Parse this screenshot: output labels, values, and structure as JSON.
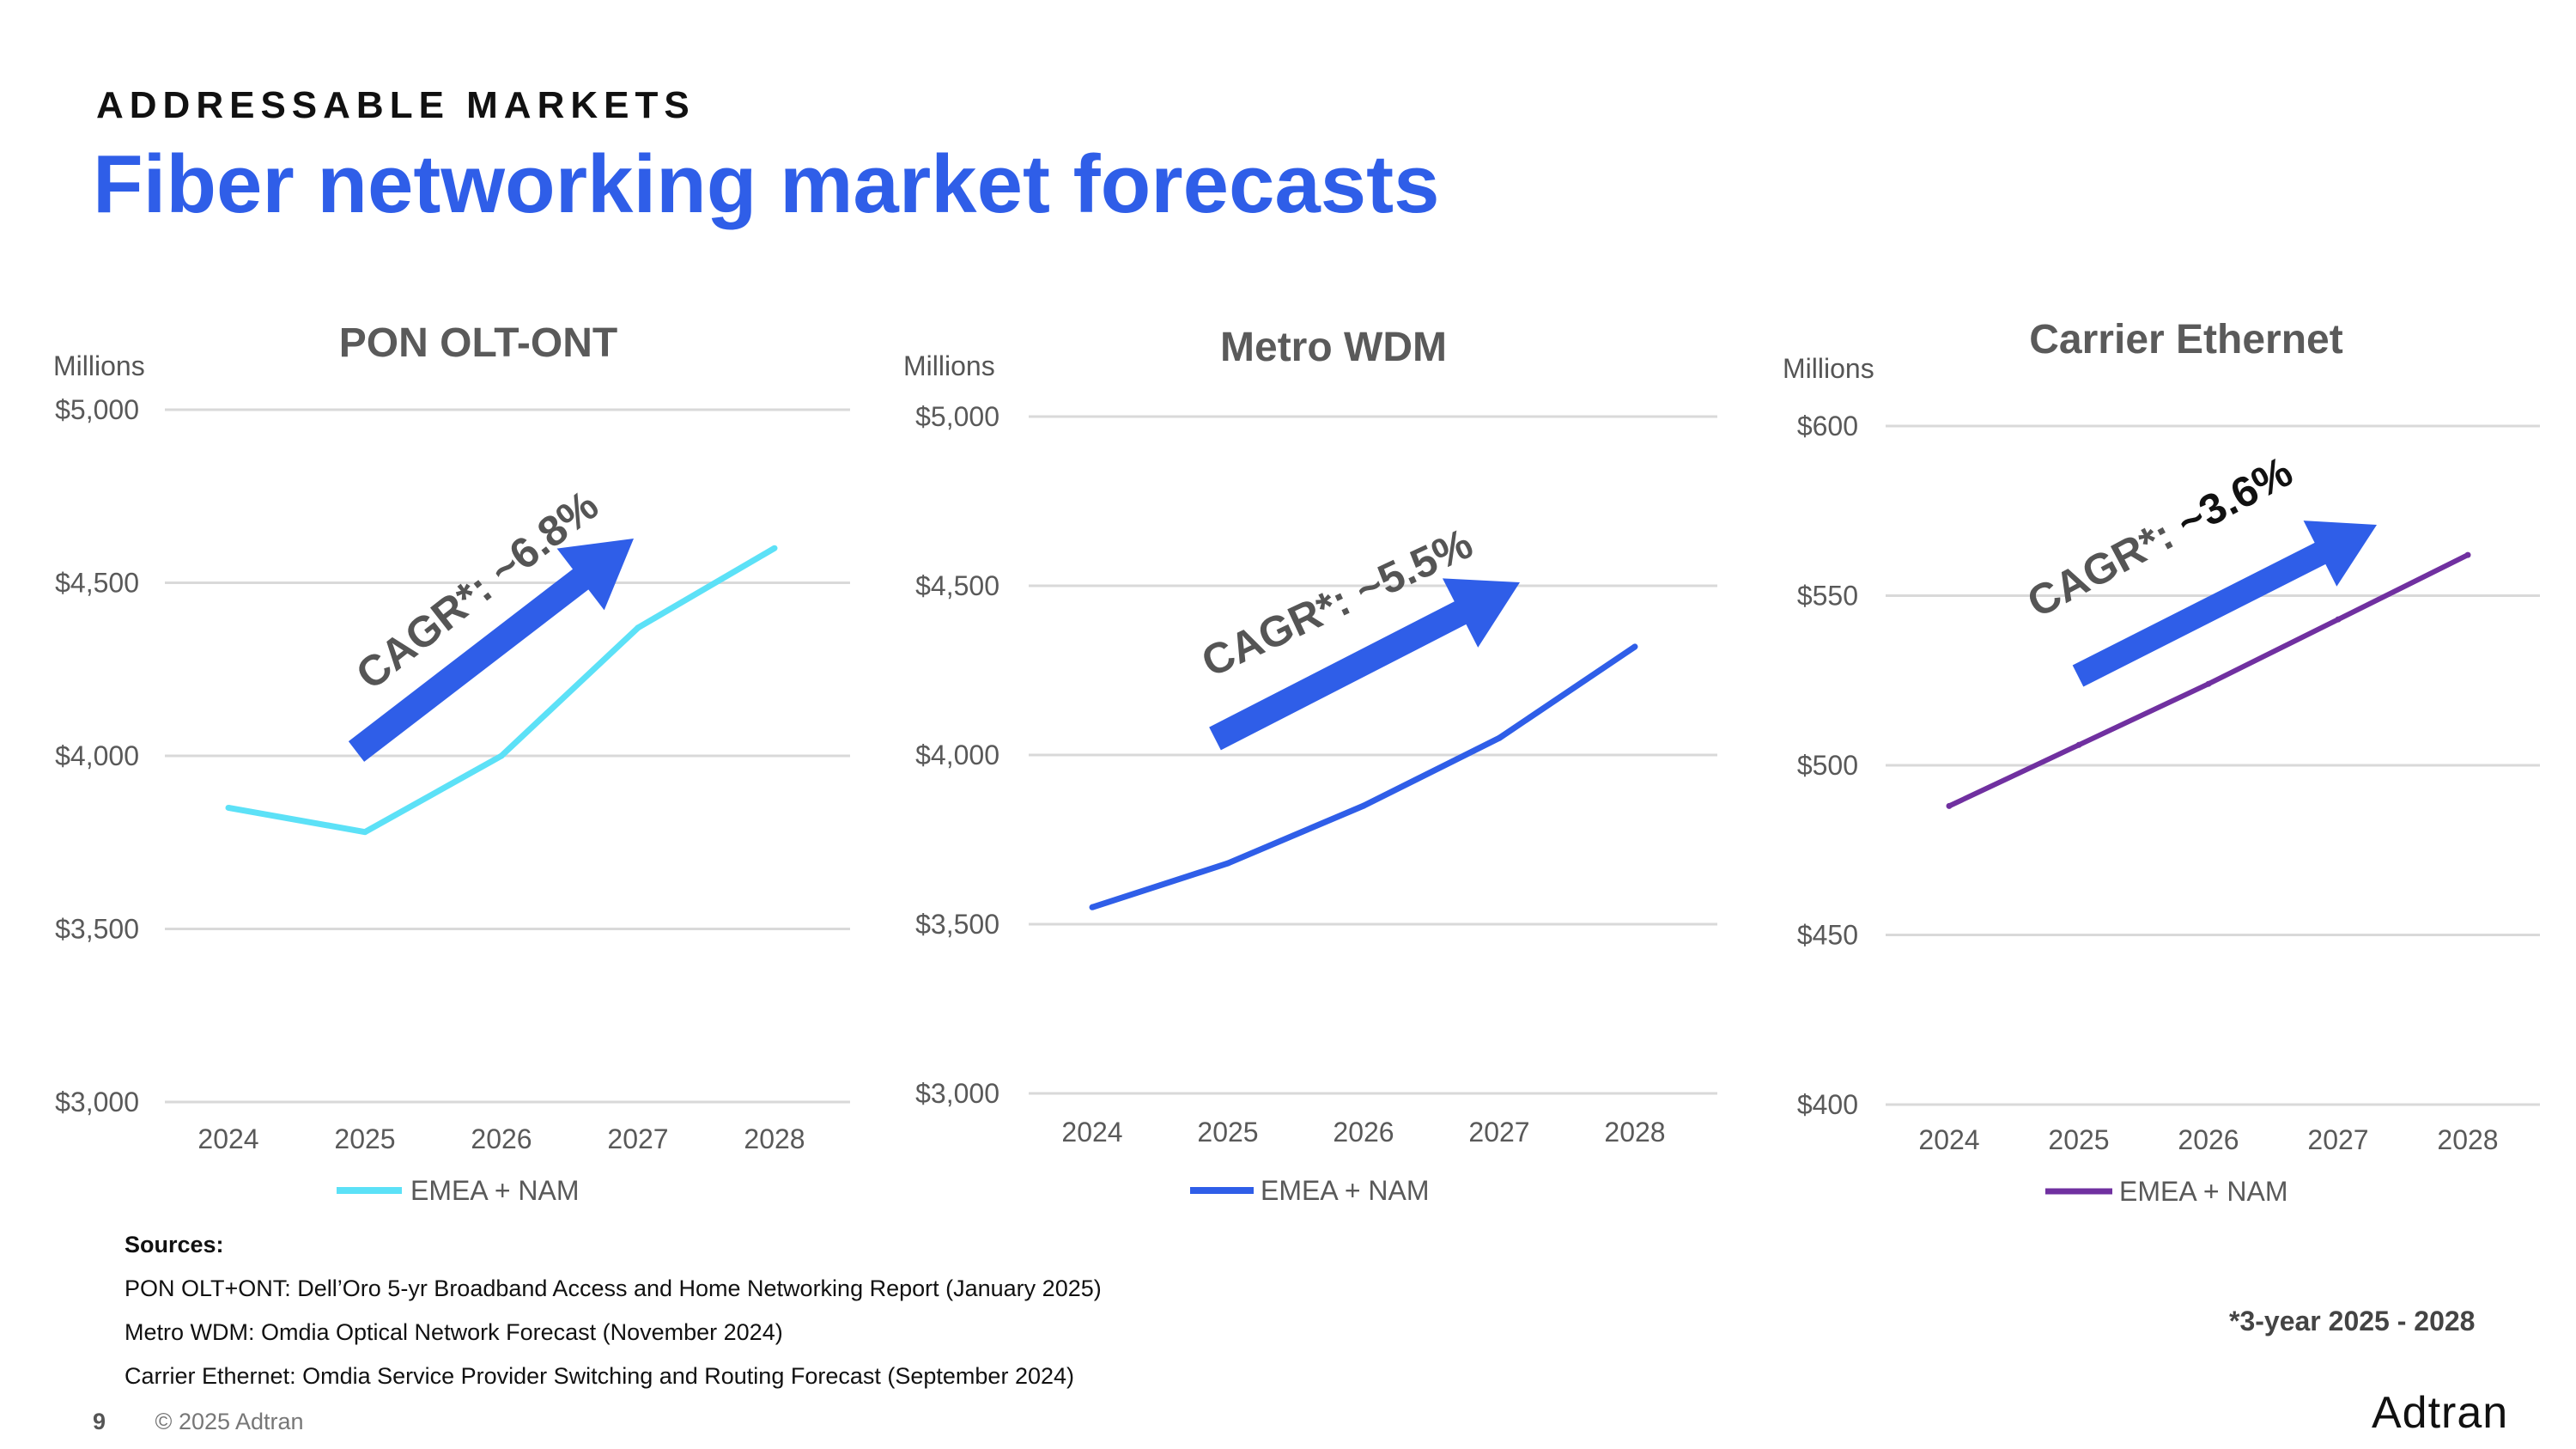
{
  "header": {
    "eyebrow": "ADDRESSABLE MARKETS",
    "title": "Fiber networking market forecasts"
  },
  "chart_data": [
    {
      "type": "line",
      "title": "PON OLT-ONT",
      "unit_label": "Millions",
      "categories": [
        "2024",
        "2025",
        "2026",
        "2027",
        "2028"
      ],
      "series": [
        {
          "name": "EMEA + NAM",
          "values": [
            3850,
            3780,
            4000,
            4370,
            4600
          ],
          "color": "#5ce1f7"
        }
      ],
      "ylim": [
        3000,
        5000
      ],
      "yticks": [
        3000,
        3500,
        4000,
        4500,
        5000
      ],
      "ytick_labels": [
        "$3,000",
        "$3,500",
        "$4,000",
        "$4,500",
        "$5,000"
      ],
      "annotation": {
        "prefix": "CAGR*: ",
        "value": "~6.8%"
      },
      "legend": "bottom"
    },
    {
      "type": "line",
      "title": "Metro WDM",
      "unit_label": "Millions",
      "categories": [
        "2024",
        "2025",
        "2026",
        "2027",
        "2028"
      ],
      "series": [
        {
          "name": "EMEA + NAM",
          "values": [
            3550,
            3680,
            3850,
            4050,
            4320
          ],
          "color": "#2f5ee8"
        }
      ],
      "ylim": [
        3000,
        5000
      ],
      "yticks": [
        3000,
        3500,
        4000,
        4500,
        5000
      ],
      "ytick_labels": [
        "$3,000",
        "$3,500",
        "$4,000",
        "$4,500",
        "$5,000"
      ],
      "annotation": {
        "prefix": "CAGR*: ",
        "value": "~5.5%"
      },
      "legend": "bottom"
    },
    {
      "type": "line",
      "title": "Carrier Ethernet",
      "unit_label": "Millions",
      "categories": [
        "2024",
        "2025",
        "2026",
        "2027",
        "2028"
      ],
      "series": [
        {
          "name": "EMEA + NAM",
          "values": [
            488,
            506,
            524,
            543,
            562
          ],
          "color": "#7030a0"
        }
      ],
      "ylim": [
        400,
        600
      ],
      "yticks": [
        400,
        450,
        500,
        550,
        600
      ],
      "ytick_labels": [
        "$400",
        "$450",
        "$500",
        "$550",
        "$600"
      ],
      "annotation": {
        "prefix": "CAGR*: ",
        "value": "~3.6%"
      },
      "legend": "bottom"
    }
  ],
  "sources": {
    "heading": "Sources:",
    "lines": [
      "PON OLT+ONT: Dell’Oro 5-yr Broadband Access and Home Networking Report (January 2025)",
      "Metro WDM: Omdia Optical Network Forecast (November 2024)",
      "Carrier Ethernet: Omdia Service Provider Switching and Routing Forecast (September 2024)"
    ]
  },
  "footnote": "*3-year 2025 - 2028",
  "footer": {
    "page": "9",
    "copyright": "© 2025 Adtran",
    "logo_text": "Adtran"
  },
  "colors": {
    "title": "#2f5ee8",
    "arrow": "#2f5ee8",
    "grid": "#d9d9d9"
  }
}
